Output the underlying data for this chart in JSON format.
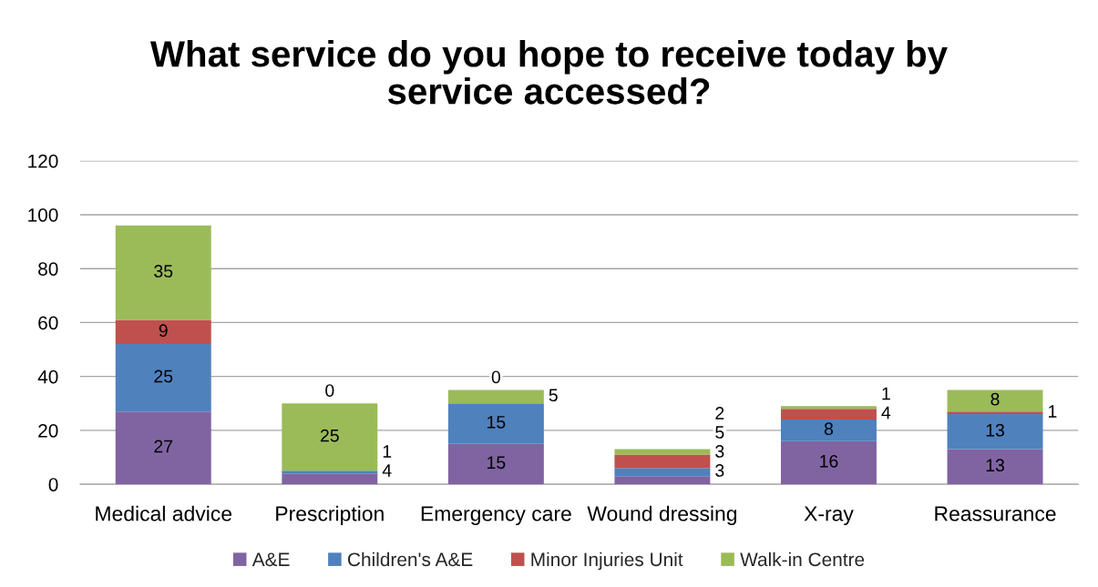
{
  "chart_data": {
    "type": "bar",
    "title": "What service do you hope to receive today by\nservice accessed?",
    "categories": [
      "Medical advice",
      "Prescription",
      "Emergency care",
      "Wound dressing",
      "X-ray",
      "Reassurance"
    ],
    "series": [
      {
        "name": "A&E",
        "color": "#8064a2",
        "values": [
          27,
          4,
          15,
          3,
          16,
          13
        ]
      },
      {
        "name": "Children's A&E",
        "color": "#4f81bd",
        "values": [
          25,
          1,
          15,
          3,
          8,
          13
        ]
      },
      {
        "name": "Minor Injuries Unit",
        "color": "#c0504d",
        "values": [
          9,
          0,
          0,
          5,
          4,
          1
        ]
      },
      {
        "name": "Walk-in Centre",
        "color": "#9bbb59",
        "values": [
          35,
          25,
          5,
          2,
          1,
          8
        ]
      }
    ],
    "stacked": true,
    "ylim": [
      0,
      120
    ],
    "yticks": [
      0,
      20,
      40,
      60,
      80,
      100,
      120
    ],
    "grid": "y",
    "legend": "bottom",
    "data_labels": true
  }
}
